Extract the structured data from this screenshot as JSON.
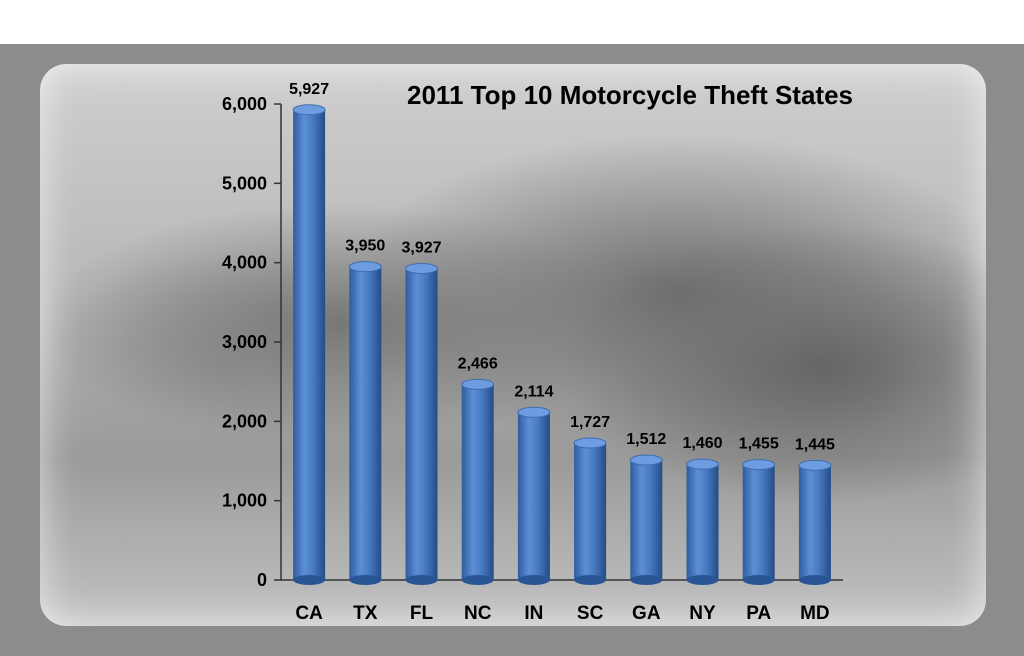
{
  "chart_data": {
    "type": "bar",
    "title": "2011 Top 10 Motorcycle Theft States",
    "categories": [
      "CA",
      "TX",
      "FL",
      "NC",
      "IN",
      "SC",
      "GA",
      "NY",
      "PA",
      "MD"
    ],
    "values": [
      5927,
      3950,
      3927,
      2466,
      2114,
      1727,
      1512,
      1460,
      1455,
      1445
    ],
    "value_labels": [
      "5,927",
      "3,950",
      "3,927",
      "2,466",
      "2,114",
      "1,727",
      "1,512",
      "1,460",
      "1,455",
      "1,445"
    ],
    "y_ticks": [
      0,
      1000,
      2000,
      3000,
      4000,
      5000,
      6000
    ],
    "y_tick_labels": [
      "0",
      "1,000",
      "2,000",
      "3,000",
      "4,000",
      "5,000",
      "6,000"
    ],
    "ylim": [
      0,
      6000
    ],
    "xlabel": "",
    "ylabel": "",
    "grid": false,
    "legend": "none",
    "bar_color": "#4a7cc4"
  }
}
